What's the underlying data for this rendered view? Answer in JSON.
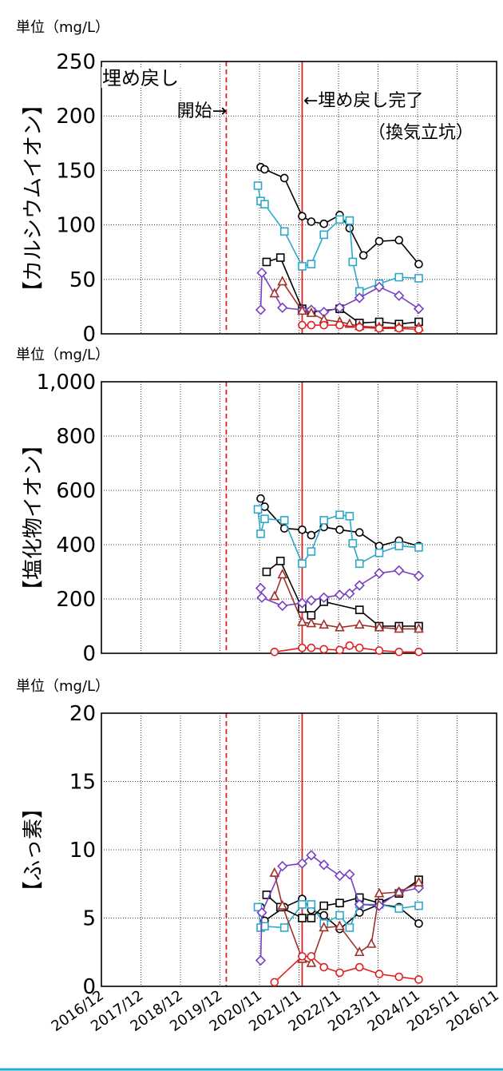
{
  "chart_data": [
    {
      "type": "line",
      "unit_label": "単位（mg/L）",
      "ylabel": "【カルシウムイオン】",
      "yticks": [
        "0",
        "50",
        "100",
        "150",
        "200",
        "250"
      ],
      "ylim": [
        0,
        250
      ],
      "annotations": {
        "start_line1": "埋め戻し",
        "start_line2": "開始→",
        "end_line1": "←埋め戻し完了",
        "end_line2": "（換気立坑）"
      },
      "series": [
        {
          "marker": "circle",
          "color": "#000000",
          "x": [
            2020.95,
            2021.05,
            2021.55,
            2022.0,
            2022.23,
            2022.55,
            2022.95,
            2023.2,
            2023.55,
            2023.95,
            2024.45,
            2024.95
          ],
          "y": [
            153,
            151,
            143,
            108,
            103,
            101,
            109,
            97,
            72,
            85,
            86,
            64
          ]
        },
        {
          "marker": "square",
          "color": "#2fa8c8",
          "x": [
            2020.88,
            2020.95,
            2021.05,
            2021.55,
            2022.0,
            2022.23,
            2022.55,
            2022.95,
            2023.2,
            2023.28,
            2023.45,
            2023.95,
            2024.45,
            2024.95
          ],
          "y": [
            136,
            122,
            119,
            94,
            62,
            64,
            91,
            105,
            104,
            66,
            39,
            46,
            52,
            51
          ]
        },
        {
          "marker": "square",
          "color": "#000000",
          "x": [
            2021.1,
            2021.45,
            2022.0,
            2022.23,
            2022.95,
            2023.45,
            2023.95,
            2024.45,
            2024.95
          ],
          "y": [
            66,
            70,
            23,
            20,
            23,
            10,
            11,
            9,
            11
          ]
        },
        {
          "marker": "diamond",
          "color": "#7a3fc4",
          "x": [
            2020.95,
            2020.98,
            2021.5,
            2022.0,
            2022.23,
            2022.55,
            2022.95,
            2023.45,
            2023.95,
            2024.45,
            2024.95
          ],
          "y": [
            22,
            56,
            24,
            22,
            22,
            20,
            24,
            33,
            43,
            35,
            23
          ]
        },
        {
          "marker": "triangle",
          "color": "#a0302a",
          "x": [
            2021.3,
            2021.5,
            2022.0,
            2022.23,
            2022.55,
            2022.95,
            2023.2,
            2023.45,
            2023.95,
            2024.45,
            2024.95
          ],
          "y": [
            37,
            48,
            21,
            19,
            13,
            11,
            9,
            7,
            6,
            6,
            6
          ]
        },
        {
          "marker": "circle",
          "color": "#e02020",
          "x": [
            2022.0,
            2022.23,
            2022.55,
            2022.95,
            2023.45,
            2023.95,
            2024.45,
            2024.95
          ],
          "y": [
            8,
            8,
            8,
            8,
            6,
            5,
            5,
            4
          ]
        }
      ]
    },
    {
      "type": "line",
      "unit_label": "単位（mg/L）",
      "ylabel": "【塩化物イオン】",
      "yticks": [
        "0",
        "200",
        "400",
        "600",
        "800",
        "1,000"
      ],
      "ylim": [
        0,
        1000
      ],
      "series": [
        {
          "marker": "circle",
          "color": "#000000",
          "x": [
            2020.95,
            2021.05,
            2021.55,
            2022.0,
            2022.23,
            2022.55,
            2022.95,
            2023.45,
            2023.95,
            2024.45,
            2024.95
          ],
          "y": [
            570,
            540,
            460,
            455,
            435,
            465,
            455,
            445,
            395,
            415,
            395
          ]
        },
        {
          "marker": "square",
          "color": "#2fa8c8",
          "x": [
            2020.88,
            2020.95,
            2021.05,
            2021.55,
            2022.0,
            2022.23,
            2022.55,
            2022.95,
            2023.2,
            2023.28,
            2023.45,
            2023.95,
            2024.45,
            2024.95
          ],
          "y": [
            530,
            440,
            495,
            490,
            330,
            375,
            490,
            510,
            505,
            405,
            330,
            370,
            395,
            390
          ]
        },
        {
          "marker": "square",
          "color": "#000000",
          "x": [
            2021.1,
            2021.45,
            2022.0,
            2022.23,
            2022.55,
            2023.45,
            2023.95,
            2024.45,
            2024.95
          ],
          "y": [
            300,
            340,
            165,
            140,
            190,
            160,
            100,
            100,
            100
          ]
        },
        {
          "marker": "diamond",
          "color": "#7a3fc4",
          "x": [
            2020.95,
            2020.98,
            2021.5,
            2022.0,
            2022.23,
            2022.55,
            2022.95,
            2023.2,
            2023.45,
            2023.95,
            2024.45,
            2024.95
          ],
          "y": [
            240,
            205,
            175,
            185,
            195,
            205,
            215,
            220,
            250,
            295,
            305,
            285
          ]
        },
        {
          "marker": "triangle",
          "color": "#a0302a",
          "x": [
            2021.3,
            2021.5,
            2022.0,
            2022.23,
            2022.55,
            2022.95,
            2023.45,
            2023.95,
            2024.45,
            2024.95
          ],
          "y": [
            210,
            290,
            115,
            110,
            105,
            95,
            105,
            95,
            90,
            90
          ]
        },
        {
          "marker": "circle",
          "color": "#e02020",
          "x": [
            2021.3,
            2022.0,
            2022.23,
            2022.55,
            2022.95,
            2023.2,
            2023.45,
            2023.95,
            2024.45,
            2024.95
          ],
          "y": [
            5,
            20,
            20,
            15,
            12,
            28,
            20,
            10,
            5,
            5
          ]
        }
      ]
    },
    {
      "type": "line",
      "unit_label": "単位（mg/L）",
      "ylabel": "【ふっ素】",
      "yticks": [
        "0",
        "5",
        "10",
        "15",
        "20"
      ],
      "ylim": [
        0,
        20
      ],
      "x_tick_labels": [
        "2016/12",
        "2017/12",
        "2018/12",
        "2019/12",
        "2020/11",
        "2021/11",
        "2022/11",
        "2023/11",
        "2024/11",
        "2025/11",
        "2026/11"
      ],
      "series": [
        {
          "marker": "circle",
          "color": "#000000",
          "x": [
            2020.95,
            2021.05,
            2021.55,
            2022.0,
            2022.23,
            2022.55,
            2022.95,
            2023.45,
            2023.95,
            2024.45,
            2024.95
          ],
          "y": [
            5.8,
            4.8,
            5.8,
            6.4,
            5.6,
            5.2,
            4.2,
            5.4,
            6.0,
            5.8,
            4.6
          ]
        },
        {
          "marker": "square",
          "color": "#2fa8c8",
          "x": [
            2020.88,
            2020.95,
            2021.05,
            2021.55,
            2022.0,
            2022.23,
            2022.55,
            2022.95,
            2023.2,
            2023.45,
            2023.95,
            2024.45,
            2024.95
          ],
          "y": [
            5.8,
            4.3,
            4.4,
            4.3,
            6.0,
            6.0,
            4.6,
            5.2,
            4.3,
            6.0,
            6.0,
            5.7,
            5.9
          ]
        },
        {
          "marker": "square",
          "color": "#000000",
          "x": [
            2021.1,
            2021.45,
            2022.0,
            2022.23,
            2022.55,
            2022.95,
            2023.45,
            2023.95,
            2024.45,
            2024.95
          ],
          "y": [
            6.7,
            5.8,
            5.0,
            5.0,
            5.9,
            6.1,
            6.5,
            6.1,
            6.8,
            7.8
          ]
        },
        {
          "marker": "diamond",
          "color": "#7a3fc4",
          "x": [
            2020.95,
            2020.98,
            2021.5,
            2022.0,
            2022.23,
            2022.55,
            2022.95,
            2023.2,
            2023.45,
            2023.95,
            2024.45,
            2024.95
          ],
          "y": [
            1.9,
            5.4,
            8.8,
            9.0,
            9.6,
            8.9,
            8.1,
            8.2,
            6.0,
            5.9,
            6.9,
            7.2
          ]
        },
        {
          "marker": "triangle",
          "color": "#a0302a",
          "x": [
            2021.3,
            2021.5,
            2022.0,
            2022.23,
            2022.55,
            2022.95,
            2023.45,
            2023.75,
            2023.95,
            2024.45,
            2024.95
          ],
          "y": [
            8.3,
            5.9,
            2.0,
            1.7,
            4.3,
            4.4,
            2.5,
            3.1,
            6.8,
            6.9,
            7.6
          ]
        },
        {
          "marker": "circle",
          "color": "#e02020",
          "x": [
            2021.3,
            2022.0,
            2022.23,
            2022.55,
            2022.95,
            2023.45,
            2023.95,
            2024.45,
            2024.95
          ],
          "y": [
            0.3,
            2.2,
            2.2,
            1.4,
            1.0,
            1.4,
            0.9,
            0.7,
            0.5
          ]
        }
      ]
    }
  ],
  "x_axis": {
    "xlim": [
      2016.92,
      2026.92
    ]
  },
  "reference_lines": {
    "start_dashed_x": 2020.08,
    "complete_solid_x": 2022.0,
    "color": "#e02020"
  }
}
